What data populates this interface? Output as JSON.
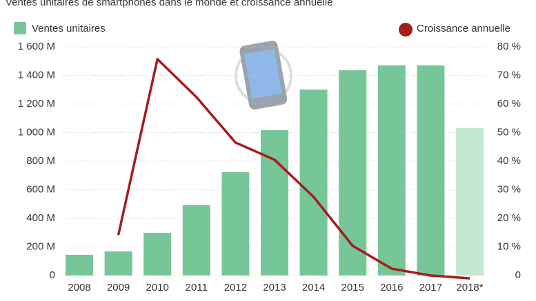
{
  "chart_data": {
    "type": "bar-line",
    "title": "Ventes unitaires de smartphones dans le monde et croissance annuelle",
    "categories": [
      "2008",
      "2009",
      "2010",
      "2011",
      "2012",
      "2013",
      "2014",
      "2015",
      "2016",
      "2017",
      "2018*"
    ],
    "series": [
      {
        "name": "Ventes unitaires",
        "type": "bar",
        "color": "#77c698",
        "colors": [
          "#77c698",
          "#77c698",
          "#77c698",
          "#77c698",
          "#77c698",
          "#77c698",
          "#77c698",
          "#77c698",
          "#77c698",
          "#77c698",
          "#c5e8d3"
        ],
        "values": [
          145,
          169,
          299,
          492,
          723,
          1017,
          1301,
          1436,
          1470,
          1470,
          1031
        ]
      },
      {
        "name": "Croissance annuelle",
        "type": "line",
        "axis": "y2",
        "color": "#a51c1c",
        "values": [
          null,
          14.2,
          75.7,
          62.4,
          46.5,
          40.5,
          27.5,
          10.4,
          2.4,
          0,
          -1
        ]
      }
    ],
    "ylim": [
      0,
      1600
    ],
    "yticks": [
      0,
      {
        "value": 200,
        "label": "200 M"
      },
      {
        "value": 400,
        "label": "400 M"
      },
      {
        "value": 600,
        "label": "600 M"
      },
      {
        "value": 800,
        "label": "800 M"
      },
      {
        "value": 1000,
        "label": "1 000 M"
      },
      {
        "value": 1200,
        "label": "1 200 M"
      },
      {
        "value": 1400,
        "label": "1 400 M"
      },
      {
        "value": 1600,
        "label": "1 600 M"
      }
    ],
    "y2lim": [
      0,
      80
    ],
    "y2ticks": [
      0,
      {
        "value": 10,
        "label": "10 %"
      },
      {
        "value": 20,
        "label": "20 %"
      },
      {
        "value": 30,
        "label": "30 %"
      },
      {
        "value": 40,
        "label": "40 %"
      },
      {
        "value": 50,
        "label": "50 %"
      },
      {
        "value": 60,
        "label": "60 %"
      },
      {
        "value": 70,
        "label": "70 %"
      },
      {
        "value": 80,
        "label": "80 %"
      }
    ],
    "grid": true
  }
}
